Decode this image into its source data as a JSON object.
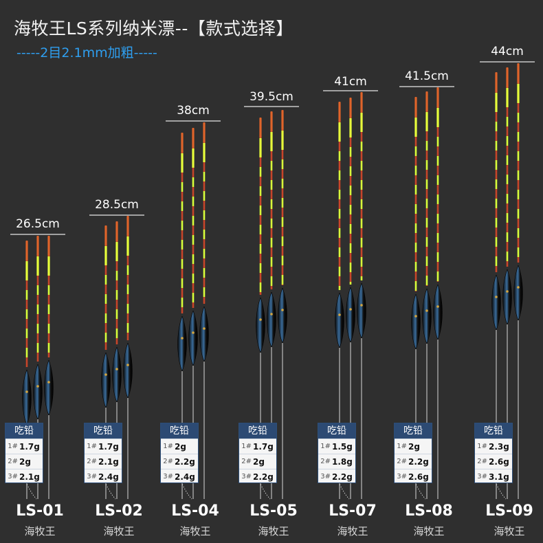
{
  "header": {
    "title": "海牧王LS系列纳米漂--【款式选择】",
    "subtitle": "-----2目2.1mm加粗-----"
  },
  "colors": {
    "background": "#2f2f2f",
    "accent_blue": "#2f9ff0",
    "card_header": "#2c4a73",
    "tip_orange": "#e0642a",
    "tip_yellow": "#e8ff3a"
  },
  "table_header": "吃铅",
  "slot_labels": [
    "1#",
    "2#",
    "3#"
  ],
  "products": [
    {
      "model": "LS-01",
      "brand": "海牧王",
      "length": "26.5cm",
      "weights": [
        "1.7g",
        "2g",
        "2.1g"
      ]
    },
    {
      "model": "LS-02",
      "brand": "海牧王",
      "length": "28.5cm",
      "weights": [
        "1.7g",
        "2.1g",
        "2.4g"
      ]
    },
    {
      "model": "LS-04",
      "brand": "海牧王",
      "length": "38cm",
      "weights": [
        "2g",
        "2.2g",
        "2.4g"
      ]
    },
    {
      "model": "LS-05",
      "brand": "海牧王",
      "length": "39.5cm",
      "weights": [
        "1.7g",
        "2g",
        "2.2g"
      ]
    },
    {
      "model": "LS-07",
      "brand": "海牧王",
      "length": "41cm",
      "weights": [
        "1.5g",
        "1.8g",
        "2.2g"
      ]
    },
    {
      "model": "LS-08",
      "brand": "海牧王",
      "length": "41.5cm",
      "weights": [
        "2g",
        "2.2g",
        "2.6g"
      ]
    },
    {
      "model": "LS-09",
      "brand": "海牧王",
      "length": "44cm",
      "weights": [
        "2.3g",
        "2.6g",
        "3.1g"
      ]
    }
  ]
}
